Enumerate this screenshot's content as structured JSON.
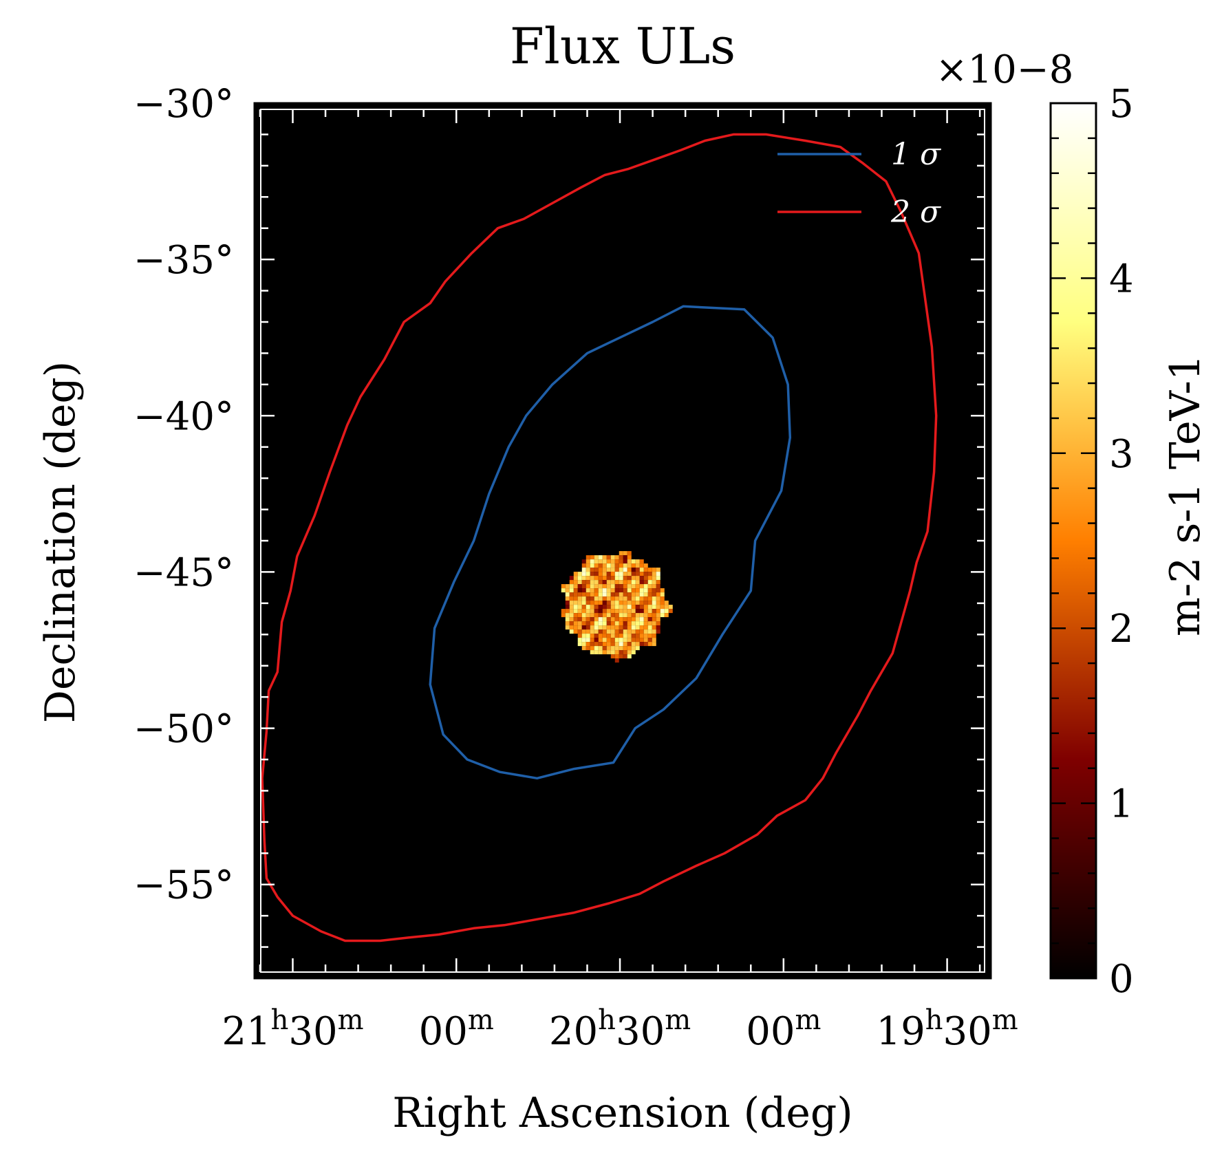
{
  "chart_data": {
    "type": "heatmap",
    "title": "Flux ULs",
    "xlabel": "Right Ascension (deg)",
    "ylabel": "Declination (deg)",
    "colorbar": {
      "label": "m-2 s-1 TeV-1",
      "multiplier": "×10−8",
      "min": 0,
      "max": 5,
      "ticks": [
        "0",
        "1",
        "2",
        "3",
        "4",
        "5"
      ],
      "colormap": "afmhot",
      "colors": [
        "#000000",
        "#7f0000",
        "#ff7f00",
        "#ffff80",
        "#ffffff"
      ]
    },
    "x_axis": {
      "direction": "decreasing (RA increases to the left)",
      "range_deg": [
        324.25,
        290.5
      ],
      "ticks": [
        {
          "ra_deg": 322.5,
          "h": "21",
          "m": "30",
          "hour_label": "21h30m"
        },
        {
          "ra_deg": 315.0,
          "h": "",
          "m": "00",
          "hour_label": "00m"
        },
        {
          "ra_deg": 307.5,
          "h": "20",
          "m": "30",
          "hour_label": "20h30m"
        },
        {
          "ra_deg": 300.0,
          "h": "",
          "m": "00",
          "hour_label": "00m"
        },
        {
          "ra_deg": 292.5,
          "h": "19",
          "m": "30",
          "hour_label": "19h30m"
        }
      ]
    },
    "y_axis": {
      "range_deg": [
        -58.0,
        -30.0
      ],
      "ticks": [
        {
          "value": -30,
          "label": "−30°"
        },
        {
          "value": -35,
          "label": "−35°"
        },
        {
          "value": -40,
          "label": "−40°"
        },
        {
          "value": -45,
          "label": "−45°"
        },
        {
          "value": -50,
          "label": "−50°"
        },
        {
          "value": -55,
          "label": "−55°"
        }
      ]
    },
    "legend": {
      "placement": "top-right",
      "entries": [
        {
          "name": "1 σ",
          "color": "#1f5fa8"
        },
        {
          "name": "2 σ",
          "color": "#e41a1c"
        }
      ]
    },
    "heatmap_region": {
      "description": "circular patch of flux upper-limit values",
      "center_ra_deg": 307.8,
      "center_dec_deg": -46.0,
      "radius_deg": 1.8,
      "value_range": [
        1.0,
        4.5
      ]
    },
    "series": [
      {
        "name": "1 σ",
        "color": "#1f5fa8",
        "points": [
          [
            304.6,
            -36.5
          ],
          [
            301.8,
            -36.6
          ],
          [
            300.5,
            -37.5
          ],
          [
            299.8,
            -39.0
          ],
          [
            299.7,
            -40.7
          ],
          [
            300.1,
            -42.4
          ],
          [
            301.3,
            -44.0
          ],
          [
            301.5,
            -45.6
          ],
          [
            302.8,
            -47.0
          ],
          [
            304.0,
            -48.4
          ],
          [
            305.5,
            -49.4
          ],
          [
            306.8,
            -50.0
          ],
          [
            307.8,
            -51.1
          ],
          [
            309.6,
            -51.3
          ],
          [
            311.3,
            -51.6
          ],
          [
            313.0,
            -51.4
          ],
          [
            314.5,
            -51.0
          ],
          [
            315.6,
            -50.2
          ],
          [
            316.2,
            -48.6
          ],
          [
            316.0,
            -46.8
          ],
          [
            315.1,
            -45.3
          ],
          [
            314.2,
            -44.0
          ],
          [
            313.5,
            -42.5
          ],
          [
            312.6,
            -41.0
          ],
          [
            311.8,
            -40.0
          ],
          [
            310.6,
            -39.0
          ],
          [
            309.0,
            -38.0
          ],
          [
            307.2,
            -37.4
          ],
          [
            306.0,
            -37.0
          ],
          [
            304.6,
            -36.5
          ]
        ]
      },
      {
        "name": "2 σ",
        "color": "#e41a1c",
        "points": [
          [
            299.0,
            -31.2
          ],
          [
            297.4,
            -31.4
          ],
          [
            296.4,
            -31.9
          ],
          [
            295.3,
            -32.5
          ],
          [
            294.6,
            -33.5
          ],
          [
            293.8,
            -34.8
          ],
          [
            293.2,
            -37.8
          ],
          [
            293.0,
            -40.0
          ],
          [
            293.1,
            -41.8
          ],
          [
            293.4,
            -43.7
          ],
          [
            293.9,
            -44.7
          ],
          [
            294.2,
            -45.6
          ],
          [
            295.0,
            -47.6
          ],
          [
            296.0,
            -48.8
          ],
          [
            296.6,
            -49.6
          ],
          [
            297.6,
            -50.8
          ],
          [
            298.2,
            -51.6
          ],
          [
            299.0,
            -52.3
          ],
          [
            300.3,
            -52.8
          ],
          [
            301.2,
            -53.4
          ],
          [
            302.7,
            -54.0
          ],
          [
            304.0,
            -54.4
          ],
          [
            305.5,
            -54.9
          ],
          [
            306.6,
            -55.3
          ],
          [
            308.0,
            -55.6
          ],
          [
            309.6,
            -55.9
          ],
          [
            311.2,
            -56.1
          ],
          [
            312.8,
            -56.3
          ],
          [
            314.2,
            -56.4
          ],
          [
            315.8,
            -56.6
          ],
          [
            317.2,
            -56.7
          ],
          [
            318.5,
            -56.8
          ],
          [
            320.1,
            -56.8
          ],
          [
            321.2,
            -56.5
          ],
          [
            322.5,
            -56.0
          ],
          [
            323.2,
            -55.4
          ],
          [
            323.7,
            -54.8
          ],
          [
            323.8,
            -53.6
          ],
          [
            323.9,
            -51.6
          ],
          [
            323.7,
            -50.1
          ],
          [
            323.6,
            -48.8
          ],
          [
            323.2,
            -48.2
          ],
          [
            323.0,
            -46.6
          ],
          [
            322.6,
            -45.6
          ],
          [
            322.3,
            -44.5
          ],
          [
            321.5,
            -43.2
          ],
          [
            320.8,
            -41.8
          ],
          [
            320.0,
            -40.3
          ],
          [
            319.4,
            -39.4
          ],
          [
            318.3,
            -38.2
          ],
          [
            317.4,
            -37.0
          ],
          [
            316.2,
            -36.4
          ],
          [
            315.5,
            -35.7
          ],
          [
            314.3,
            -34.8
          ],
          [
            313.1,
            -34.0
          ],
          [
            311.9,
            -33.7
          ],
          [
            310.6,
            -33.2
          ],
          [
            309.3,
            -32.7
          ],
          [
            308.2,
            -32.3
          ],
          [
            307.1,
            -32.1
          ],
          [
            305.9,
            -31.8
          ],
          [
            304.7,
            -31.5
          ],
          [
            303.6,
            -31.2
          ],
          [
            302.3,
            -31.0
          ],
          [
            300.8,
            -31.0
          ],
          [
            299.0,
            -31.2
          ]
        ]
      }
    ]
  }
}
